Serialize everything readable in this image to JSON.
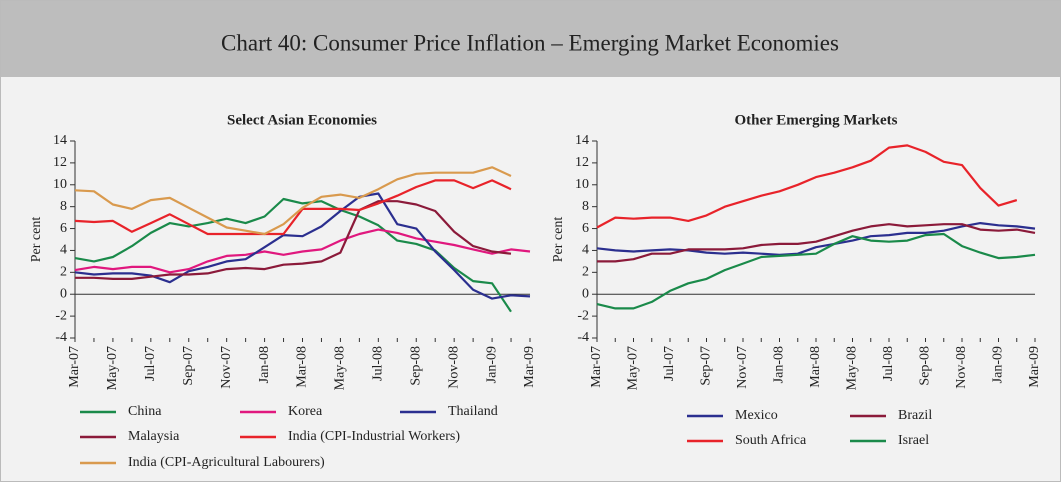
{
  "title": "Chart 40: Consumer Price Inflation – Emerging Market Economies",
  "chart_data": [
    {
      "type": "line",
      "title": "Select Asian Economies",
      "y_label": "Per cent",
      "categories": [
        "Mar-07",
        null,
        "May-07",
        null,
        "Jul-07",
        null,
        "Sep-07",
        null,
        "Nov-07",
        null,
        "Jan-08",
        null,
        "Mar-08",
        null,
        "May-08",
        null,
        "Jul-08",
        null,
        "Sep-08",
        null,
        "Nov-08",
        null,
        "Jan-09",
        null,
        "Mar-09"
      ],
      "ylim": [
        -4,
        14
      ],
      "yticks": [
        -4,
        -2,
        0,
        2,
        4,
        6,
        8,
        10,
        12,
        14
      ],
      "series": [
        {
          "name": "China",
          "color": "#1a8a4a",
          "values": [
            3.3,
            3.0,
            3.4,
            4.4,
            5.6,
            6.5,
            6.2,
            6.5,
            6.9,
            6.5,
            7.1,
            8.7,
            8.3,
            8.5,
            7.7,
            7.1,
            6.3,
            4.9,
            4.6,
            4.0,
            2.4,
            1.2,
            1.0,
            -1.6,
            null
          ]
        },
        {
          "name": "Korea",
          "color": "#e0187e",
          "values": [
            2.2,
            2.5,
            2.3,
            2.5,
            2.5,
            2.0,
            2.3,
            3.0,
            3.5,
            3.6,
            3.9,
            3.6,
            3.9,
            4.1,
            4.9,
            5.5,
            5.9,
            5.6,
            5.1,
            4.8,
            4.5,
            4.1,
            3.7,
            4.1,
            3.9
          ]
        },
        {
          "name": "Thailand",
          "color": "#2b2f8f",
          "values": [
            2.0,
            1.8,
            1.9,
            1.9,
            1.7,
            1.1,
            2.1,
            2.5,
            3.0,
            3.2,
            4.3,
            5.4,
            5.3,
            6.2,
            7.6,
            8.9,
            9.2,
            6.4,
            6.0,
            3.9,
            2.2,
            0.4,
            -0.4,
            -0.1,
            -0.2
          ]
        },
        {
          "name": "Malaysia",
          "color": "#8b1a3a",
          "values": [
            1.5,
            1.5,
            1.4,
            1.4,
            1.6,
            1.8,
            1.8,
            1.9,
            2.3,
            2.4,
            2.3,
            2.7,
            2.8,
            3.0,
            3.8,
            7.7,
            8.5,
            8.5,
            8.2,
            7.6,
            5.7,
            4.4,
            3.9,
            3.7,
            null
          ]
        },
        {
          "name": "India (CPI-Industrial Workers)",
          "color": "#e8232a",
          "values": [
            6.7,
            6.6,
            6.7,
            5.7,
            6.5,
            7.3,
            6.4,
            5.5,
            5.5,
            5.5,
            5.5,
            5.5,
            7.8,
            7.8,
            7.8,
            7.7,
            8.3,
            9.0,
            9.8,
            10.4,
            10.4,
            9.7,
            10.4,
            9.6,
            null
          ]
        },
        {
          "name": "India (CPI-Agricultural Labourers)",
          "color": "#d99a4e",
          "values": [
            9.5,
            9.4,
            8.2,
            7.8,
            8.6,
            8.8,
            7.9,
            7.0,
            6.1,
            5.8,
            5.5,
            6.4,
            7.9,
            8.9,
            9.1,
            8.8,
            9.6,
            10.5,
            11.0,
            11.1,
            11.1,
            11.1,
            11.6,
            10.8,
            null
          ]
        }
      ]
    },
    {
      "type": "line",
      "title": "Other Emerging Markets",
      "y_label": "Per cent",
      "categories": [
        "Mar-07",
        null,
        "May-07",
        null,
        "Jul-07",
        null,
        "Sep-07",
        null,
        "Nov-07",
        null,
        "Jan-08",
        null,
        "Mar-08",
        null,
        "May-08",
        null,
        "Jul-08",
        null,
        "Sep-08",
        null,
        "Nov-08",
        null,
        "Jan-09",
        null,
        "Mar-09"
      ],
      "ylim": [
        -4,
        14
      ],
      "yticks": [
        -4,
        -2,
        0,
        2,
        4,
        6,
        8,
        10,
        12,
        14
      ],
      "series": [
        {
          "name": "Mexico",
          "color": "#2b2f8f",
          "values": [
            4.2,
            4.0,
            3.9,
            4.0,
            4.1,
            4.0,
            3.8,
            3.7,
            3.8,
            3.7,
            3.6,
            3.7,
            4.3,
            4.6,
            4.9,
            5.3,
            5.4,
            5.6,
            5.6,
            5.8,
            6.2,
            6.5,
            6.3,
            6.2,
            6.0
          ]
        },
        {
          "name": "Brazil",
          "color": "#8b1a3a",
          "values": [
            3.0,
            3.0,
            3.2,
            3.7,
            3.7,
            4.1,
            4.1,
            4.1,
            4.2,
            4.5,
            4.6,
            4.6,
            4.8,
            5.3,
            5.8,
            6.2,
            6.4,
            6.2,
            6.3,
            6.4,
            6.4,
            5.9,
            5.8,
            5.9,
            5.6
          ]
        },
        {
          "name": "South Africa",
          "color": "#e8232a",
          "values": [
            6.1,
            7.0,
            6.9,
            7.0,
            7.0,
            6.7,
            7.2,
            8.0,
            8.5,
            9.0,
            9.4,
            10.0,
            10.7,
            11.1,
            11.6,
            12.2,
            13.4,
            13.6,
            13.0,
            12.1,
            11.8,
            9.7,
            8.1,
            8.6,
            null
          ]
        },
        {
          "name": "Israel",
          "color": "#1a8a4a",
          "values": [
            -0.9,
            -1.3,
            -1.3,
            -0.7,
            0.3,
            1.0,
            1.4,
            2.2,
            2.8,
            3.4,
            3.5,
            3.6,
            3.7,
            4.6,
            5.3,
            4.9,
            4.8,
            4.9,
            5.4,
            5.5,
            4.4,
            3.8,
            3.3,
            3.4,
            3.6
          ]
        }
      ]
    }
  ]
}
